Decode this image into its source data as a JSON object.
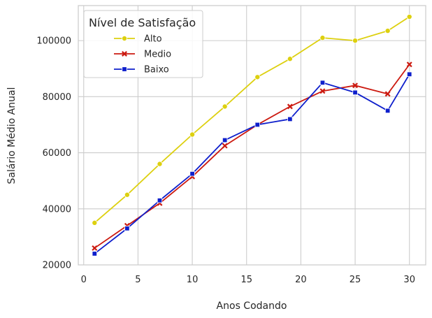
{
  "chart_data": {
    "type": "line",
    "xlabel": "Anos Codando",
    "ylabel": "Salário Médio Anual",
    "xlim": [
      -0.5,
      31.5
    ],
    "ylim": [
      20000,
      112500
    ],
    "xticks": [
      0,
      5,
      10,
      15,
      20,
      25,
      30
    ],
    "yticks": [
      20000,
      40000,
      60000,
      80000,
      100000
    ],
    "x": [
      1,
      4,
      7,
      10,
      13,
      16,
      19,
      22,
      25,
      28,
      30
    ],
    "grid": true,
    "legend_position": "top-left",
    "legend_title": "Nível de Satisfação",
    "series": [
      {
        "name": "Alto",
        "color": "#ddd00f",
        "marker": "circle",
        "values": [
          35000,
          45000,
          56000,
          66500,
          76500,
          87000,
          93500,
          101000,
          100000,
          103500,
          108500
        ]
      },
      {
        "name": "Medio",
        "color": "#cc1a10",
        "marker": "x",
        "values": [
          26000,
          34000,
          42000,
          51500,
          62500,
          70000,
          76500,
          82000,
          84000,
          81000,
          91500
        ]
      },
      {
        "name": "Baixo",
        "color": "#0e1fcc",
        "marker": "square",
        "values": [
          24000,
          33000,
          43000,
          52500,
          64500,
          70000,
          72000,
          85000,
          81500,
          75000,
          88000
        ]
      }
    ]
  }
}
